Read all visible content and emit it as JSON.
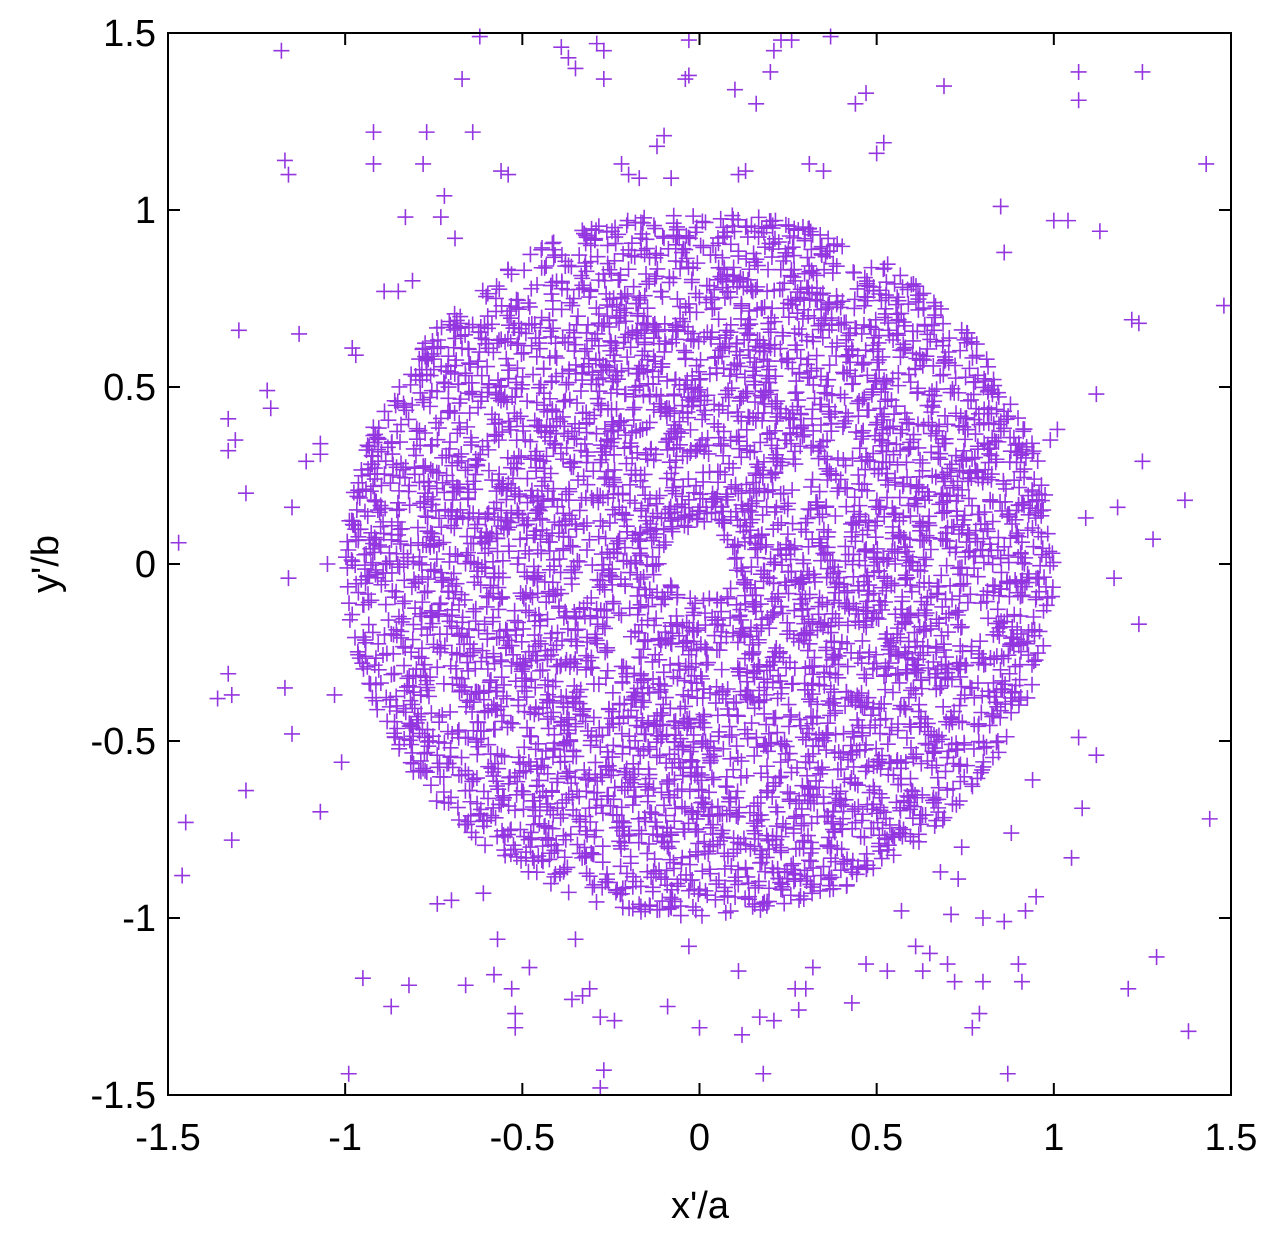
{
  "chart_data": {
    "type": "scatter",
    "title": "",
    "xlabel": "x'/a",
    "ylabel": "y'/b",
    "xlim": [
      -1.5,
      1.5
    ],
    "ylim": [
      -1.5,
      1.5
    ],
    "xticks": [
      "-1.5",
      "-1",
      "-0.5",
      "0",
      "0.5",
      "1",
      "1.5"
    ],
    "yticks": [
      "-1.5",
      "-1",
      "-0.5",
      "0",
      "0.5",
      "1",
      "1.5"
    ],
    "grid": false,
    "legend": "none",
    "marker": "plus",
    "color": "#9436e0",
    "series": [
      {
        "description_of_core": "dense annulus of points between radius 0.1 and 1.0 (thousands of points)",
        "annulus": {
          "inner_radius": 0.1,
          "outer_radius": 1.0,
          "count": 5200
        },
        "outliers": [
          [
            -1.47,
            0.06
          ],
          [
            -1.45,
            -0.73
          ],
          [
            -1.46,
            -0.88
          ],
          [
            -1.36,
            -0.38
          ],
          [
            -1.33,
            -0.31
          ],
          [
            -1.32,
            -0.37
          ],
          [
            -1.32,
            -0.78
          ],
          [
            -1.33,
            0.41
          ],
          [
            -1.33,
            0.32
          ],
          [
            -1.31,
            0.35
          ],
          [
            -1.3,
            0.66
          ],
          [
            -1.28,
            0.2
          ],
          [
            -1.28,
            -0.64
          ],
          [
            -1.22,
            0.49
          ],
          [
            -1.21,
            0.44
          ],
          [
            -1.18,
            1.45
          ],
          [
            -1.17,
            1.14
          ],
          [
            -1.16,
            1.1
          ],
          [
            -1.17,
            -0.35
          ],
          [
            -1.16,
            -0.04
          ],
          [
            -1.15,
            -0.48
          ],
          [
            -1.15,
            0.16
          ],
          [
            -1.13,
            0.65
          ],
          [
            -1.11,
            0.29
          ],
          [
            -1.07,
            0.34
          ],
          [
            -1.07,
            0.31
          ],
          [
            -1.07,
            -0.7
          ],
          [
            -1.03,
            -0.37
          ],
          [
            -1.01,
            -0.56
          ],
          [
            -0.99,
            -1.44
          ],
          [
            -0.95,
            -1.17
          ],
          [
            -0.92,
            1.22
          ],
          [
            -0.92,
            1.13
          ],
          [
            -0.89,
            0.77
          ],
          [
            -0.87,
            -1.25
          ],
          [
            -0.85,
            0.77
          ],
          [
            -0.83,
            0.98
          ],
          [
            -0.82,
            -1.19
          ],
          [
            -0.81,
            0.8
          ],
          [
            -0.77,
            1.22
          ],
          [
            -0.78,
            1.13
          ],
          [
            -0.73,
            0.98
          ],
          [
            -0.72,
            1.04
          ],
          [
            -0.74,
            -0.96
          ],
          [
            -0.7,
            -0.95
          ],
          [
            -0.69,
            0.92
          ],
          [
            -0.67,
            1.37
          ],
          [
            -0.66,
            -1.19
          ],
          [
            -0.64,
            1.22
          ],
          [
            -0.62,
            1.49
          ],
          [
            -0.61,
            -0.93
          ],
          [
            -0.58,
            -1.16
          ],
          [
            -0.57,
            -1.06
          ],
          [
            -0.56,
            1.11
          ],
          [
            -0.54,
            1.1
          ],
          [
            -0.53,
            -1.2
          ],
          [
            -0.52,
            -1.27
          ],
          [
            -0.52,
            -1.31
          ],
          [
            -0.48,
            -1.14
          ],
          [
            -0.39,
            1.46
          ],
          [
            -0.37,
            1.43
          ],
          [
            -0.35,
            1.4
          ],
          [
            -0.35,
            -1.06
          ],
          [
            -0.36,
            -1.23
          ],
          [
            -0.33,
            -1.22
          ],
          [
            -0.31,
            -1.2
          ],
          [
            -0.29,
            1.47
          ],
          [
            -0.27,
            1.45
          ],
          [
            -0.28,
            -1.28
          ],
          [
            -0.28,
            -1.48
          ],
          [
            -0.27,
            -1.43
          ],
          [
            -0.27,
            1.37
          ],
          [
            -0.24,
            -1.29
          ],
          [
            -0.22,
            1.13
          ],
          [
            -0.2,
            1.1
          ],
          [
            -0.17,
            1.09
          ],
          [
            -0.12,
            1.18
          ],
          [
            -0.1,
            1.21
          ],
          [
            -0.08,
            1.09
          ],
          [
            -0.09,
            -1.25
          ],
          [
            -0.03,
            1.48
          ],
          [
            -0.04,
            1.37
          ],
          [
            -0.03,
            1.38
          ],
          [
            -0.03,
            -1.08
          ],
          [
            0.0,
            -1.31
          ],
          [
            0.1,
            1.34
          ],
          [
            0.11,
            1.1
          ],
          [
            0.11,
            -1.15
          ],
          [
            0.12,
            -1.33
          ],
          [
            0.16,
            1.3
          ],
          [
            0.17,
            -1.28
          ],
          [
            0.18,
            -1.44
          ],
          [
            0.2,
            1.39
          ],
          [
            0.21,
            1.45
          ],
          [
            0.21,
            -1.29
          ],
          [
            0.23,
            1.48
          ],
          [
            0.26,
            1.48
          ],
          [
            0.27,
            -1.2
          ],
          [
            0.28,
            -1.26
          ],
          [
            0.3,
            -1.2
          ],
          [
            0.31,
            1.13
          ],
          [
            0.32,
            -1.14
          ],
          [
            0.35,
            1.11
          ],
          [
            0.37,
            1.49
          ],
          [
            0.43,
            -1.24
          ],
          [
            0.44,
            1.3
          ],
          [
            0.47,
            -1.13
          ],
          [
            0.47,
            1.33
          ],
          [
            0.5,
            1.16
          ],
          [
            0.52,
            1.19
          ],
          [
            0.53,
            -1.15
          ],
          [
            0.57,
            -0.98
          ],
          [
            0.61,
            -1.08
          ],
          [
            0.63,
            -1.15
          ],
          [
            0.65,
            -1.1
          ],
          [
            0.68,
            -0.87
          ],
          [
            0.69,
            1.35
          ],
          [
            0.7,
            -1.13
          ],
          [
            0.71,
            -0.99
          ],
          [
            0.72,
            -1.18
          ],
          [
            0.73,
            -0.89
          ],
          [
            0.74,
            -0.8
          ],
          [
            0.77,
            -1.31
          ],
          [
            0.79,
            -1.27
          ],
          [
            0.8,
            -1.0
          ],
          [
            0.8,
            -1.18
          ],
          [
            0.85,
            1.01
          ],
          [
            0.86,
            0.88
          ],
          [
            0.86,
            -1.01
          ],
          [
            0.87,
            -1.44
          ],
          [
            0.88,
            -0.76
          ],
          [
            0.9,
            -1.13
          ],
          [
            0.91,
            -1.18
          ],
          [
            0.92,
            -0.98
          ],
          [
            0.94,
            -0.61
          ],
          [
            0.95,
            -0.94
          ],
          [
            1.0,
            0.97
          ],
          [
            1.01,
            0.38
          ],
          [
            1.04,
            0.97
          ],
          [
            1.05,
            -0.83
          ],
          [
            1.07,
            1.39
          ],
          [
            1.07,
            1.31
          ],
          [
            1.07,
            -0.49
          ],
          [
            1.08,
            -0.69
          ],
          [
            1.09,
            0.13
          ],
          [
            1.12,
            -0.54
          ],
          [
            1.12,
            0.48
          ],
          [
            1.13,
            0.94
          ],
          [
            1.17,
            -0.04
          ],
          [
            1.18,
            0.16
          ],
          [
            1.21,
            -1.2
          ],
          [
            1.22,
            0.69
          ],
          [
            1.24,
            0.68
          ],
          [
            1.24,
            -0.17
          ],
          [
            1.25,
            1.39
          ],
          [
            1.25,
            0.29
          ],
          [
            1.28,
            0.07
          ],
          [
            1.29,
            -1.11
          ],
          [
            1.37,
            0.18
          ],
          [
            1.38,
            -1.32
          ],
          [
            1.43,
            1.13
          ],
          [
            1.44,
            -0.72
          ],
          [
            1.48,
            0.73
          ],
          [
            -0.98,
            0.61
          ],
          [
            -0.97,
            0.59
          ],
          [
            -0.4,
            -0.81
          ],
          [
            0.99,
            0.35
          ],
          [
            -1.05,
            0.0
          ],
          [
            0.13,
            1.11
          ]
        ]
      }
    ]
  }
}
